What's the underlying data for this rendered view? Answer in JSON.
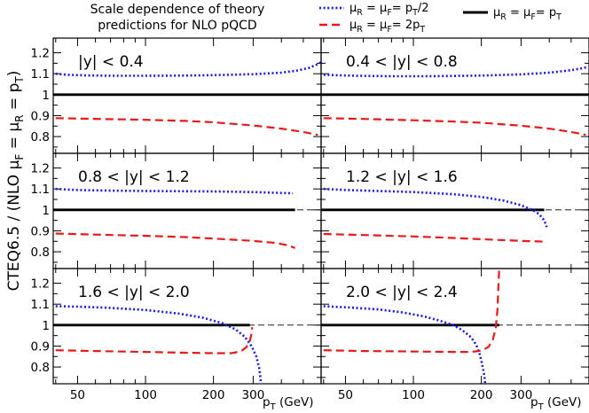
{
  "chart_data": {
    "type": "line",
    "title_lines": [
      "Scale dependence of theory",
      "predictions for NLO pQCD"
    ],
    "ylabel_text": "CTEQ6.5 / (NLO  μ",
    "ylabel_parts": [
      {
        "text": "CTEQ6.5 / (NLO  μ",
        "sub": false
      },
      {
        "text": "F",
        "sub": true
      },
      {
        "text": " = μ",
        "sub": false
      },
      {
        "text": "R",
        "sub": true
      },
      {
        "text": " = p",
        "sub": false
      },
      {
        "text": "T",
        "sub": true
      },
      {
        "text": ")",
        "sub": false
      }
    ],
    "xlabel_parts": [
      {
        "text": "p",
        "sub": false
      },
      {
        "text": "T",
        "sub": true
      },
      {
        "text": " (GeV)",
        "sub": false
      }
    ],
    "xscale": "log",
    "xlim": [
      39,
      600
    ],
    "ylim": [
      0.72,
      1.27
    ],
    "xticks": [
      50,
      100,
      200,
      300
    ],
    "yticks": [
      0.8,
      0.9,
      1,
      1.1,
      1.2
    ],
    "legend": [
      {
        "style": "dotted",
        "color": "#1a1ae6",
        "parts": [
          {
            "t": "μ",
            "s": false
          },
          {
            "t": "R",
            "s": true
          },
          {
            "t": " = μ",
            "s": false
          },
          {
            "t": "F",
            "s": true
          },
          {
            "t": "= p",
            "s": false
          },
          {
            "t": "T",
            "s": true
          },
          {
            "t": "/2",
            "s": false
          }
        ]
      },
      {
        "style": "dashed",
        "color": "#e61a1a",
        "parts": [
          {
            "t": "μ",
            "s": false
          },
          {
            "t": "R",
            "s": true
          },
          {
            "t": " = μ",
            "s": false
          },
          {
            "t": "F",
            "s": true
          },
          {
            "t": "= 2p",
            "s": false
          },
          {
            "t": "T",
            "s": true
          }
        ]
      },
      {
        "style": "solid",
        "color": "#000000",
        "parts": [
          {
            "t": "μ",
            "s": false
          },
          {
            "t": "R",
            "s": true
          },
          {
            "t": " = μ",
            "s": false
          },
          {
            "t": "F",
            "s": true
          },
          {
            "t": "= p",
            "s": false
          },
          {
            "t": "T",
            "s": true
          }
        ]
      }
    ],
    "panels": [
      {
        "label": "|y| < 0.4",
        "reference_end": 600,
        "series": [
          {
            "name": "muR=muF=pT/2",
            "style": "dotted",
            "color": "#1a1ae6",
            "points": [
              [
                40,
                1.1
              ],
              [
                45,
                1.095
              ],
              [
                55,
                1.092
              ],
              [
                70,
                1.09
              ],
              [
                100,
                1.09
              ],
              [
                150,
                1.091
              ],
              [
                200,
                1.093
              ],
              [
                300,
                1.098
              ],
              [
                400,
                1.105
              ],
              [
                470,
                1.115
              ],
              [
                530,
                1.128
              ],
              [
                580,
                1.145
              ],
              [
                600,
                1.155
              ]
            ]
          },
          {
            "name": "muR=muF=2pT",
            "style": "dashed",
            "color": "#e61a1a",
            "points": [
              [
                40,
                0.888
              ],
              [
                55,
                0.885
              ],
              [
                80,
                0.882
              ],
              [
                100,
                0.88
              ],
              [
                150,
                0.875
              ],
              [
                200,
                0.868
              ],
              [
                300,
                0.853
              ],
              [
                400,
                0.838
              ],
              [
                500,
                0.822
              ],
              [
                580,
                0.808
              ]
            ]
          }
        ]
      },
      {
        "label": "0.4 < |y| < 0.8",
        "reference_end": 600,
        "series": [
          {
            "name": "muR=muF=pT/2",
            "style": "dotted",
            "color": "#1a1ae6",
            "points": [
              [
                40,
                1.095
              ],
              [
                55,
                1.09
              ],
              [
                80,
                1.088
              ],
              [
                120,
                1.088
              ],
              [
                200,
                1.091
              ],
              [
                300,
                1.097
              ],
              [
                400,
                1.105
              ],
              [
                500,
                1.117
              ],
              [
                560,
                1.126
              ],
              [
                590,
                1.132
              ]
            ]
          },
          {
            "name": "muR=muF=2pT",
            "style": "dashed",
            "color": "#e61a1a",
            "points": [
              [
                40,
                0.888
              ],
              [
                60,
                0.884
              ],
              [
                100,
                0.878
              ],
              [
                150,
                0.872
              ],
              [
                200,
                0.866
              ],
              [
                300,
                0.852
              ],
              [
                400,
                0.838
              ],
              [
                500,
                0.822
              ],
              [
                580,
                0.808
              ]
            ]
          }
        ]
      },
      {
        "label": "0.8 < |y| < 1.2",
        "reference_end": 460,
        "series": [
          {
            "name": "muR=muF=pT/2",
            "style": "dotted",
            "color": "#1a1ae6",
            "points": [
              [
                40,
                1.1
              ],
              [
                50,
                1.095
              ],
              [
                70,
                1.092
              ],
              [
                100,
                1.09
              ],
              [
                150,
                1.089
              ],
              [
                200,
                1.088
              ],
              [
                300,
                1.085
              ],
              [
                400,
                1.081
              ],
              [
                450,
                1.079
              ]
            ]
          },
          {
            "name": "muR=muF=2pT",
            "style": "dashed",
            "color": "#e61a1a",
            "points": [
              [
                40,
                0.887
              ],
              [
                60,
                0.882
              ],
              [
                100,
                0.876
              ],
              [
                150,
                0.87
              ],
              [
                200,
                0.863
              ],
              [
                300,
                0.852
              ],
              [
                380,
                0.842
              ],
              [
                430,
                0.83
              ],
              [
                460,
                0.818
              ]
            ]
          }
        ]
      },
      {
        "label": "1.2 < |y| < 1.6",
        "reference_end": 380,
        "series": [
          {
            "name": "muR=muF=pT/2",
            "style": "dotted",
            "color": "#1a1ae6",
            "points": [
              [
                40,
                1.1
              ],
              [
                50,
                1.095
              ],
              [
                70,
                1.09
              ],
              [
                100,
                1.085
              ],
              [
                150,
                1.075
              ],
              [
                200,
                1.062
              ],
              [
                250,
                1.045
              ],
              [
                300,
                1.022
              ],
              [
                340,
                0.998
              ],
              [
                360,
                0.98
              ],
              [
                380,
                0.95
              ],
              [
                390,
                0.918
              ]
            ]
          },
          {
            "name": "muR=muF=2pT",
            "style": "dashed",
            "color": "#e61a1a",
            "points": [
              [
                40,
                0.885
              ],
              [
                60,
                0.88
              ],
              [
                100,
                0.873
              ],
              [
                150,
                0.866
              ],
              [
                200,
                0.86
              ],
              [
                300,
                0.852
              ],
              [
                390,
                0.848
              ]
            ]
          }
        ]
      },
      {
        "label": "1.6 < |y| < 2.0",
        "reference_end": 290,
        "series": [
          {
            "name": "muR=muF=pT/2",
            "style": "dotted",
            "color": "#1a1ae6",
            "points": [
              [
                40,
                1.09
              ],
              [
                50,
                1.088
              ],
              [
                70,
                1.082
              ],
              [
                100,
                1.072
              ],
              [
                140,
                1.055
              ],
              [
                180,
                1.035
              ],
              [
                220,
                1.008
              ],
              [
                250,
                0.98
              ],
              [
                275,
                0.945
              ],
              [
                295,
                0.9
              ],
              [
                310,
                0.85
              ],
              [
                320,
                0.79
              ],
              [
                325,
                0.72
              ]
            ]
          },
          {
            "name": "muR=muF=2pT",
            "style": "dashed",
            "color": "#e61a1a",
            "points": [
              [
                40,
                0.88
              ],
              [
                60,
                0.876
              ],
              [
                100,
                0.872
              ],
              [
                150,
                0.868
              ],
              [
                200,
                0.866
              ],
              [
                240,
                0.866
              ],
              [
                265,
                0.875
              ],
              [
                280,
                0.895
              ],
              [
                290,
                0.925
              ],
              [
                295,
                0.96
              ],
              [
                297,
                0.99
              ]
            ]
          }
        ]
      },
      {
        "label": "2.0 < |y| < 2.4",
        "reference_end": 240,
        "series": [
          {
            "name": "muR=muF=pT/2",
            "style": "dotted",
            "color": "#1a1ae6",
            "points": [
              [
                40,
                1.09
              ],
              [
                50,
                1.085
              ],
              [
                70,
                1.075
              ],
              [
                90,
                1.06
              ],
              [
                110,
                1.043
              ],
              [
                130,
                1.022
              ],
              [
                150,
                1.0
              ],
              [
                165,
                0.975
              ],
              [
                180,
                0.942
              ],
              [
                190,
                0.905
              ],
              [
                197,
                0.86
              ],
              [
                202,
                0.81
              ],
              [
                206,
                0.76
              ],
              [
                208,
                0.72
              ]
            ]
          },
          {
            "name": "muR=muF=2pT",
            "style": "dashed",
            "color": "#e61a1a",
            "points": [
              [
                40,
                0.88
              ],
              [
                60,
                0.876
              ],
              [
                100,
                0.874
              ],
              [
                150,
                0.872
              ],
              [
                180,
                0.872
              ],
              [
                200,
                0.878
              ],
              [
                215,
                0.895
              ],
              [
                225,
                0.93
              ],
              [
                232,
                0.99
              ],
              [
                236,
                1.08
              ],
              [
                238,
                1.18
              ],
              [
                240,
                1.27
              ]
            ]
          }
        ]
      }
    ]
  }
}
